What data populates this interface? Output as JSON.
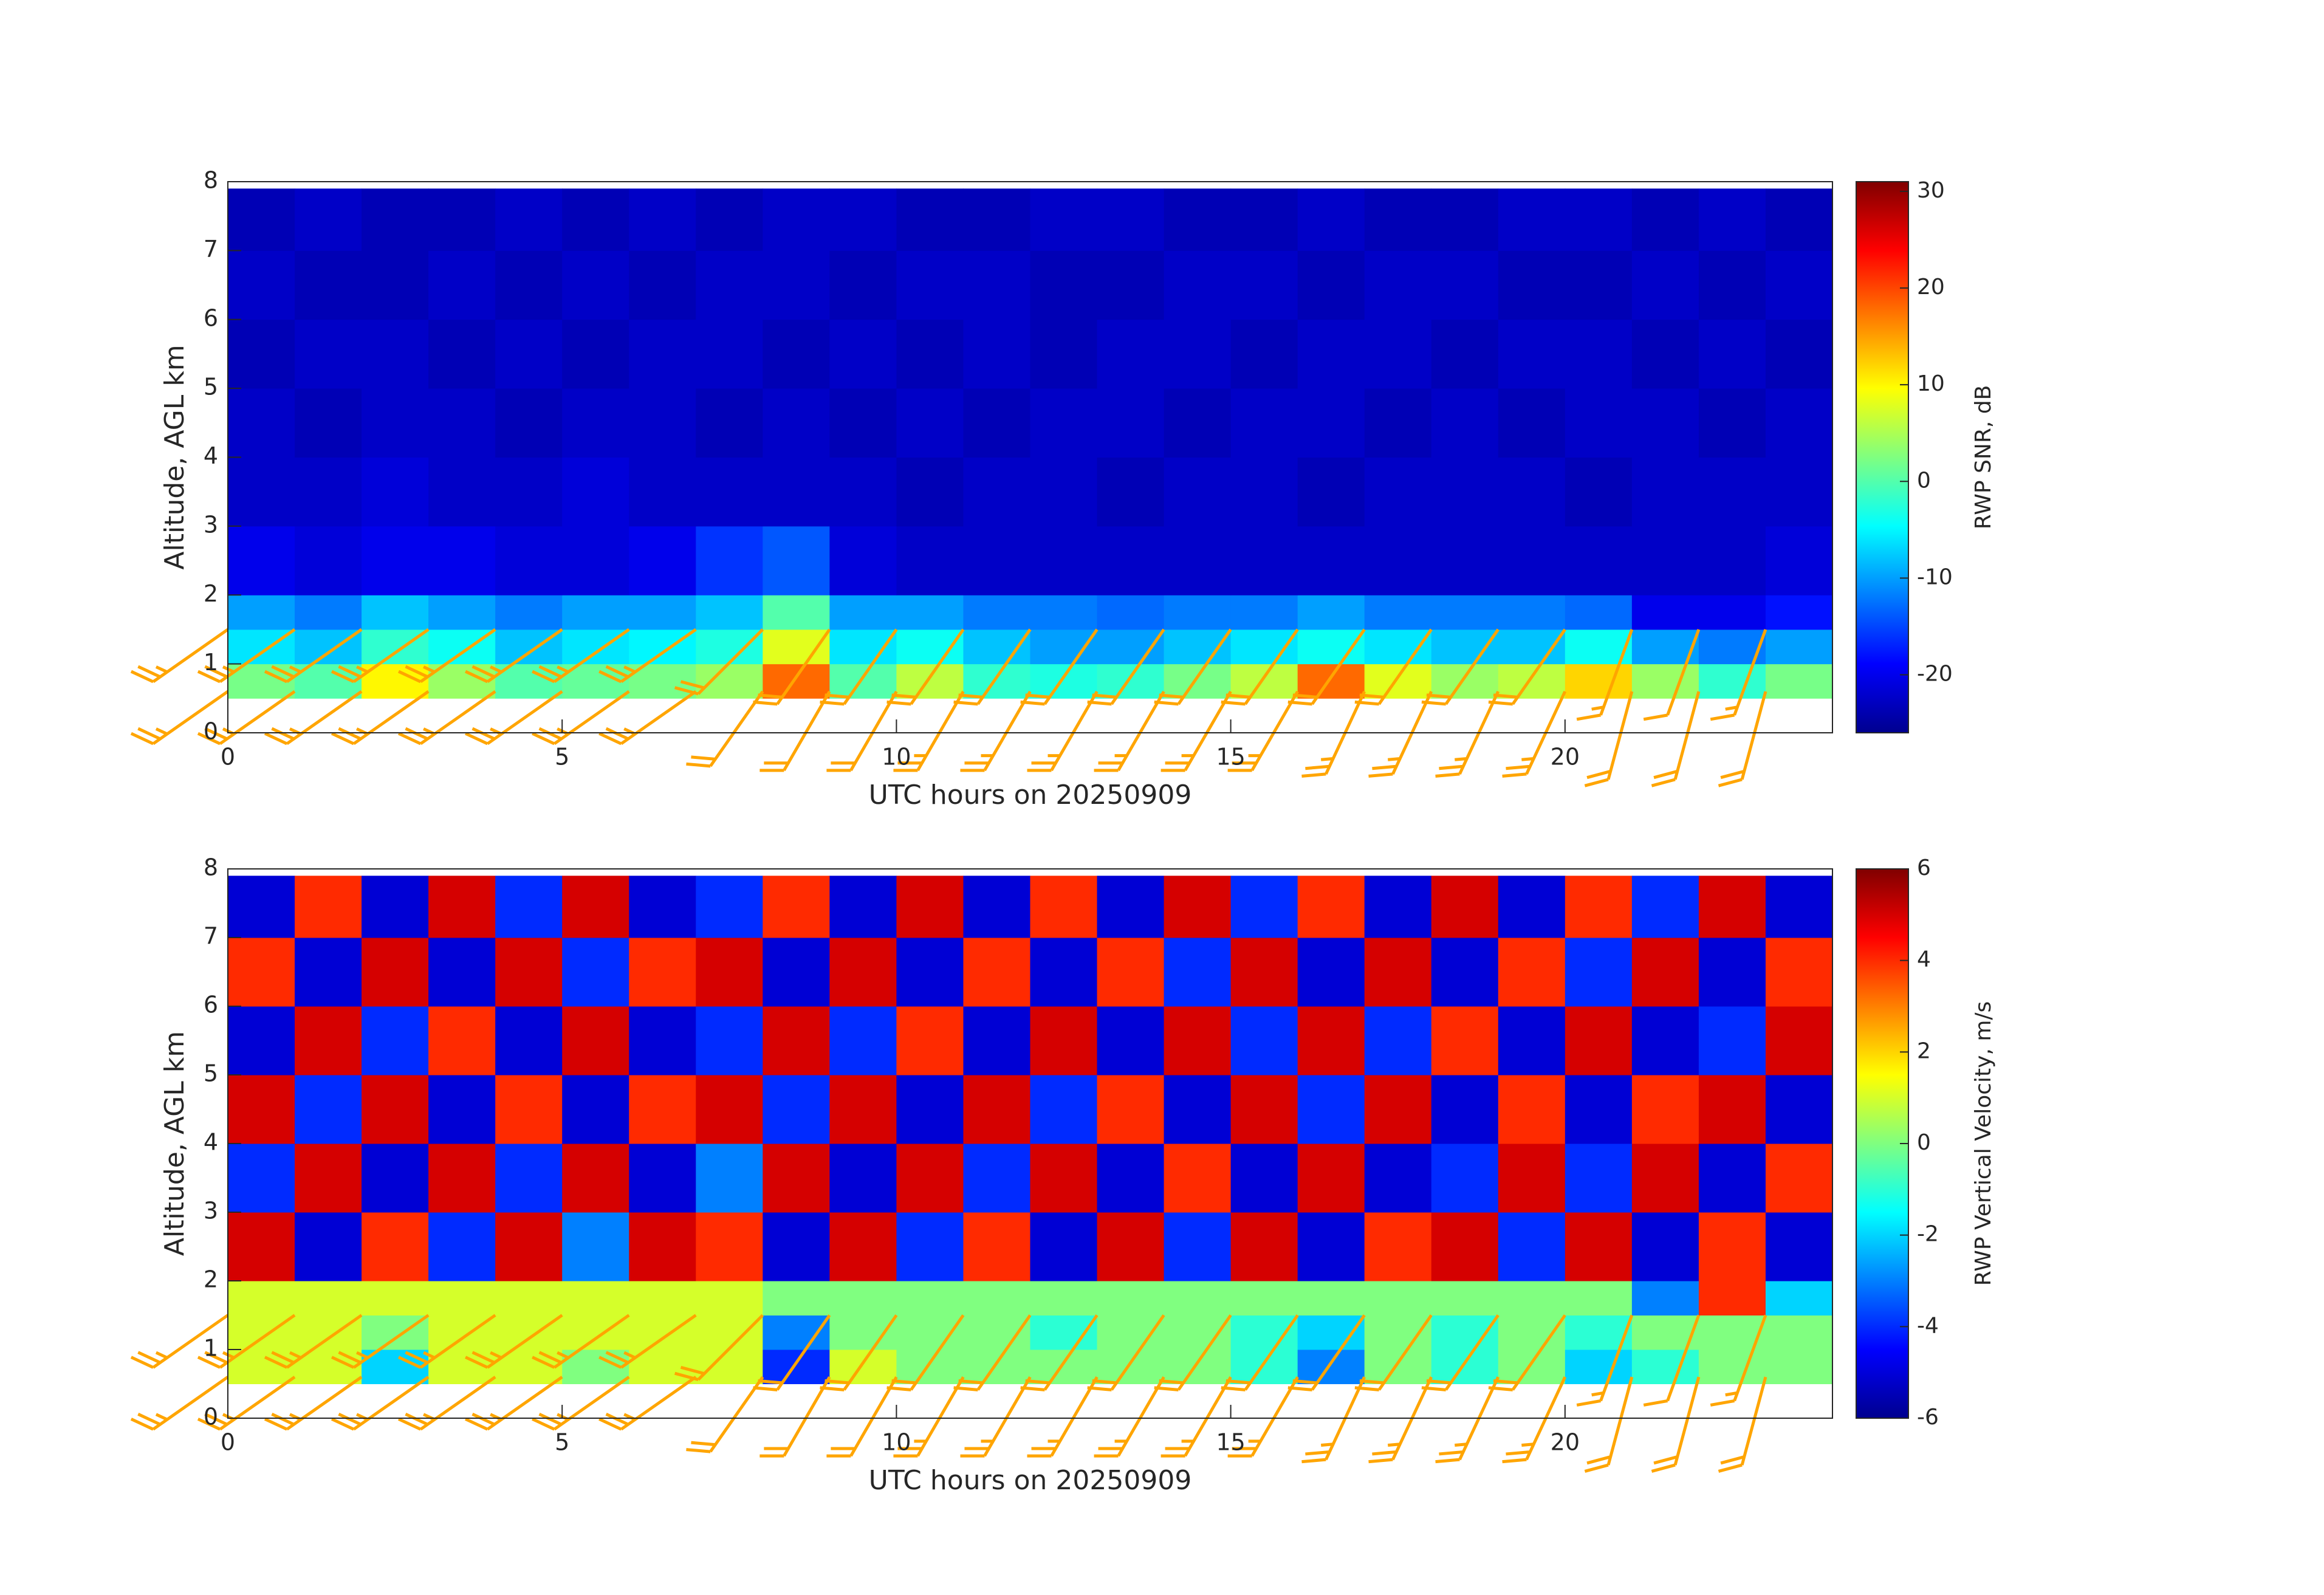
{
  "chart_data": [
    {
      "type": "heatmap",
      "colormap": "jet",
      "xlabel": "UTC hours on 20250909",
      "ylabel": "Altitude, AGL km",
      "colorbar_label": "RWP SNR, dB",
      "xlim": [
        0,
        24
      ],
      "ylim": [
        0,
        8
      ],
      "xticks": [
        0,
        5,
        10,
        15,
        20
      ],
      "yticks": [
        0,
        1,
        2,
        3,
        4,
        5,
        6,
        7,
        8
      ],
      "clim": [
        -26,
        31
      ],
      "cticks": [
        -20,
        -10,
        0,
        10,
        20,
        30
      ],
      "x_edges": [
        0,
        1,
        2,
        3,
        4,
        5,
        6,
        7,
        8,
        9,
        10,
        11,
        12,
        13,
        14,
        15,
        16,
        17,
        18,
        19,
        20,
        21,
        22,
        23,
        24
      ],
      "y_edges": [
        0.5,
        1,
        1.5,
        2,
        3,
        4,
        5,
        6,
        7,
        7.9
      ],
      "z": [
        [
          2,
          0,
          10,
          4,
          0,
          1,
          2,
          4,
          18,
          0,
          6,
          -2,
          -3,
          -2,
          2,
          6,
          18,
          8,
          4,
          6,
          12,
          4,
          -2,
          2
        ],
        [
          -6,
          -8,
          -2,
          -4,
          -8,
          -6,
          -5,
          -3,
          8,
          -6,
          -4,
          -8,
          -10,
          -10,
          -8,
          -6,
          -4,
          -6,
          -8,
          -8,
          -4,
          -10,
          -12,
          -10
        ],
        [
          -10,
          -12,
          -8,
          -10,
          -12,
          -10,
          -10,
          -8,
          0,
          -10,
          -10,
          -12,
          -12,
          -13,
          -12,
          -12,
          -10,
          -12,
          -12,
          -12,
          -13,
          -20,
          -20,
          -18
        ],
        [
          -20,
          -21,
          -20,
          -20,
          -21,
          -21,
          -20,
          -16,
          -14,
          -21,
          -22,
          -22,
          -22,
          -22,
          -22,
          -22,
          -22,
          -22,
          -22,
          -22,
          -22,
          -22,
          -22,
          -21
        ],
        [
          -22,
          -22,
          -21,
          -22,
          -22,
          -21,
          -22,
          -22,
          -22,
          -22,
          -23,
          -22,
          -22,
          -23,
          -22,
          -22,
          -23,
          -22,
          -22,
          -22,
          -23,
          -22,
          -22,
          -22
        ],
        [
          -22,
          -23,
          -22,
          -22,
          -23,
          -22,
          -22,
          -23,
          -22,
          -23,
          -22,
          -23,
          -22,
          -22,
          -23,
          -22,
          -22,
          -23,
          -22,
          -23,
          -22,
          -22,
          -23,
          -22
        ],
        [
          -23,
          -22,
          -22,
          -23,
          -22,
          -23,
          -22,
          -22,
          -23,
          -22,
          -23,
          -22,
          -23,
          -22,
          -22,
          -23,
          -22,
          -22,
          -23,
          -22,
          -22,
          -23,
          -22,
          -23
        ],
        [
          -22,
          -23,
          -23,
          -22,
          -23,
          -22,
          -23,
          -22,
          -22,
          -23,
          -22,
          -22,
          -23,
          -23,
          -22,
          -22,
          -23,
          -22,
          -22,
          -23,
          -23,
          -22,
          -23,
          -22
        ],
        [
          -23,
          -22,
          -23,
          -23,
          -22,
          -23,
          -22,
          -23,
          -22,
          -22,
          -23,
          -23,
          -22,
          -22,
          -23,
          -23,
          -22,
          -23,
          -23,
          -22,
          -22,
          -23,
          -22,
          -23
        ]
      ],
      "barbs": {
        "color": "#ffa500",
        "x": [
          0,
          1,
          2,
          3,
          4,
          5,
          6,
          7,
          8,
          9,
          10,
          11,
          12,
          13,
          14,
          15,
          16,
          17,
          18,
          19,
          20,
          21,
          22,
          23,
          0,
          1,
          2,
          3,
          4,
          5,
          6,
          7,
          8,
          9,
          10,
          11,
          12,
          13,
          14,
          15,
          16,
          17,
          18,
          19,
          20,
          21,
          22,
          23
        ],
        "y": [
          0.6,
          0.6,
          0.6,
          0.6,
          0.6,
          0.6,
          0.6,
          0.6,
          0.6,
          0.6,
          0.6,
          0.6,
          0.6,
          0.6,
          0.6,
          0.6,
          0.6,
          0.6,
          0.6,
          0.6,
          0.6,
          0.6,
          0.6,
          0.6,
          1.5,
          1.5,
          1.5,
          1.5,
          1.5,
          1.5,
          1.5,
          1.5,
          1.5,
          1.5,
          1.5,
          1.5,
          1.5,
          1.5,
          1.5,
          1.5,
          1.5,
          1.5,
          1.5,
          1.5,
          1.5,
          1.5,
          1.5,
          1.5
        ],
        "speed": [
          25,
          25,
          25,
          25,
          25,
          25,
          25,
          25,
          20,
          20,
          20,
          25,
          25,
          25,
          25,
          25,
          25,
          25,
          25,
          25,
          25,
          20,
          20,
          20,
          25,
          25,
          25,
          25,
          25,
          25,
          25,
          25,
          20,
          20,
          20,
          20,
          20,
          20,
          20,
          20,
          20,
          20,
          20,
          20,
          20,
          15,
          10,
          15
        ],
        "direction": [
          235,
          235,
          235,
          235,
          235,
          235,
          235,
          235,
          215,
          210,
          210,
          210,
          210,
          210,
          210,
          210,
          210,
          205,
          205,
          205,
          205,
          195,
          195,
          195,
          235,
          235,
          235,
          235,
          235,
          235,
          235,
          235,
          225,
          215,
          215,
          215,
          215,
          215,
          215,
          215,
          215,
          215,
          215,
          215,
          215,
          200,
          200,
          200
        ]
      }
    },
    {
      "type": "heatmap",
      "colormap": "jet",
      "xlabel": "UTC hours on 20250909",
      "ylabel": "Altitude, AGL km",
      "colorbar_label": "RWP Vertical Velocity, m/s",
      "xlim": [
        0,
        24
      ],
      "ylim": [
        0,
        8
      ],
      "xticks": [
        0,
        5,
        10,
        15,
        20
      ],
      "yticks": [
        0,
        1,
        2,
        3,
        4,
        5,
        6,
        7,
        8
      ],
      "clim": [
        -6,
        6
      ],
      "cticks": [
        -6,
        -4,
        -2,
        0,
        2,
        4,
        6
      ],
      "x_edges": [
        0,
        1,
        2,
        3,
        4,
        5,
        6,
        7,
        8,
        9,
        10,
        11,
        12,
        13,
        14,
        15,
        16,
        17,
        18,
        19,
        20,
        21,
        22,
        23,
        24
      ],
      "y_edges": [
        0.5,
        1,
        1.5,
        2,
        3,
        4,
        5,
        6,
        7,
        7.9
      ],
      "z": [
        [
          1,
          1,
          -2,
          1,
          1,
          0,
          1,
          1,
          -4,
          1,
          0,
          0,
          0,
          0,
          0,
          -1,
          -3,
          0,
          -1,
          0,
          -2,
          -1,
          0,
          0
        ],
        [
          1,
          1,
          0,
          1,
          1,
          1,
          1,
          1,
          -3,
          0,
          0,
          0,
          -1,
          0,
          0,
          -1,
          -2,
          0,
          -1,
          0,
          -1,
          0,
          0,
          0
        ],
        [
          1,
          1,
          1,
          1,
          1,
          1,
          1,
          1,
          0,
          0,
          0,
          0,
          0,
          0,
          0,
          0,
          0,
          0,
          0,
          0,
          0,
          -3,
          4,
          -2
        ],
        [
          5,
          -5,
          4,
          -4,
          5,
          -3,
          5,
          4,
          -5,
          5,
          -4,
          4,
          -5,
          5,
          -4,
          5,
          -5,
          4,
          5,
          -4,
          5,
          -5,
          4,
          -5
        ],
        [
          -4,
          5,
          -5,
          5,
          -4,
          5,
          -5,
          -3,
          5,
          -5,
          5,
          -4,
          5,
          -5,
          4,
          -5,
          5,
          -5,
          -4,
          5,
          -4,
          5,
          -5,
          4
        ],
        [
          5,
          -4,
          5,
          -5,
          4,
          -5,
          4,
          5,
          -4,
          5,
          -5,
          5,
          -4,
          4,
          -5,
          5,
          -4,
          5,
          -5,
          4,
          -5,
          4,
          5,
          -5
        ],
        [
          -5,
          5,
          -4,
          4,
          -5,
          5,
          -5,
          -4,
          5,
          -4,
          4,
          -5,
          5,
          -5,
          5,
          -4,
          5,
          -4,
          4,
          -5,
          5,
          -5,
          -4,
          5
        ],
        [
          4,
          -5,
          5,
          -5,
          5,
          -4,
          4,
          5,
          -5,
          5,
          -5,
          4,
          -5,
          4,
          -4,
          5,
          -5,
          5,
          -5,
          4,
          -4,
          5,
          -5,
          4
        ],
        [
          -5,
          4,
          -5,
          5,
          -4,
          5,
          -5,
          -4,
          4,
          -5,
          5,
          -5,
          4,
          -5,
          5,
          -4,
          4,
          -5,
          5,
          -5,
          4,
          -4,
          5,
          -5
        ]
      ],
      "barbs": {
        "color": "#ffa500",
        "x": [
          0,
          1,
          2,
          3,
          4,
          5,
          6,
          7,
          8,
          9,
          10,
          11,
          12,
          13,
          14,
          15,
          16,
          17,
          18,
          19,
          20,
          21,
          22,
          23,
          0,
          1,
          2,
          3,
          4,
          5,
          6,
          7,
          8,
          9,
          10,
          11,
          12,
          13,
          14,
          15,
          16,
          17,
          18,
          19,
          20,
          21,
          22,
          23
        ],
        "y": [
          0.6,
          0.6,
          0.6,
          0.6,
          0.6,
          0.6,
          0.6,
          0.6,
          0.6,
          0.6,
          0.6,
          0.6,
          0.6,
          0.6,
          0.6,
          0.6,
          0.6,
          0.6,
          0.6,
          0.6,
          0.6,
          0.6,
          0.6,
          0.6,
          1.5,
          1.5,
          1.5,
          1.5,
          1.5,
          1.5,
          1.5,
          1.5,
          1.5,
          1.5,
          1.5,
          1.5,
          1.5,
          1.5,
          1.5,
          1.5,
          1.5,
          1.5,
          1.5,
          1.5,
          1.5,
          1.5,
          1.5,
          1.5
        ],
        "speed": [
          25,
          25,
          25,
          25,
          25,
          25,
          25,
          25,
          20,
          20,
          20,
          25,
          25,
          25,
          25,
          25,
          25,
          25,
          25,
          25,
          25,
          20,
          20,
          20,
          25,
          25,
          25,
          25,
          25,
          25,
          25,
          25,
          20,
          20,
          20,
          20,
          20,
          20,
          20,
          20,
          20,
          20,
          20,
          20,
          20,
          15,
          10,
          15
        ],
        "direction": [
          235,
          235,
          235,
          235,
          235,
          235,
          235,
          235,
          215,
          210,
          210,
          210,
          210,
          210,
          210,
          210,
          210,
          205,
          205,
          205,
          205,
          195,
          195,
          195,
          235,
          235,
          235,
          235,
          235,
          235,
          235,
          235,
          225,
          215,
          215,
          215,
          215,
          215,
          215,
          215,
          215,
          215,
          215,
          215,
          215,
          200,
          200,
          200
        ]
      }
    }
  ]
}
